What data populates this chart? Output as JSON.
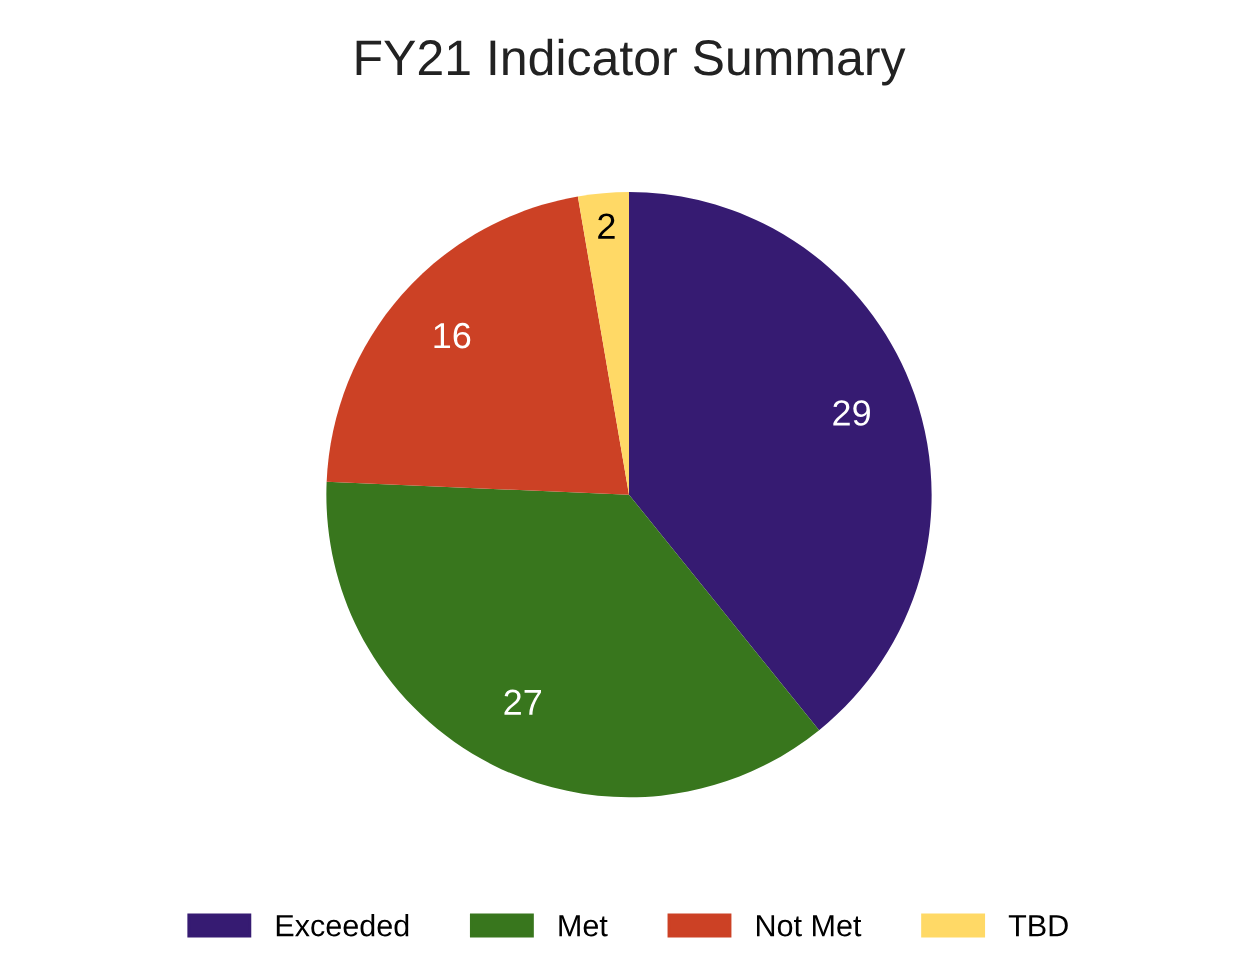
{
  "chart_data": {
    "type": "pie",
    "title": "FY21 Indicator Summary",
    "categories": [
      "Exceeded",
      "Met",
      "Not Met",
      "TBD"
    ],
    "values": [
      29,
      27,
      16,
      2
    ],
    "colors": [
      "#361b72",
      "#38761d",
      "#cc4125",
      "#ffd966"
    ],
    "data_labels": true,
    "legend": "bottom"
  }
}
